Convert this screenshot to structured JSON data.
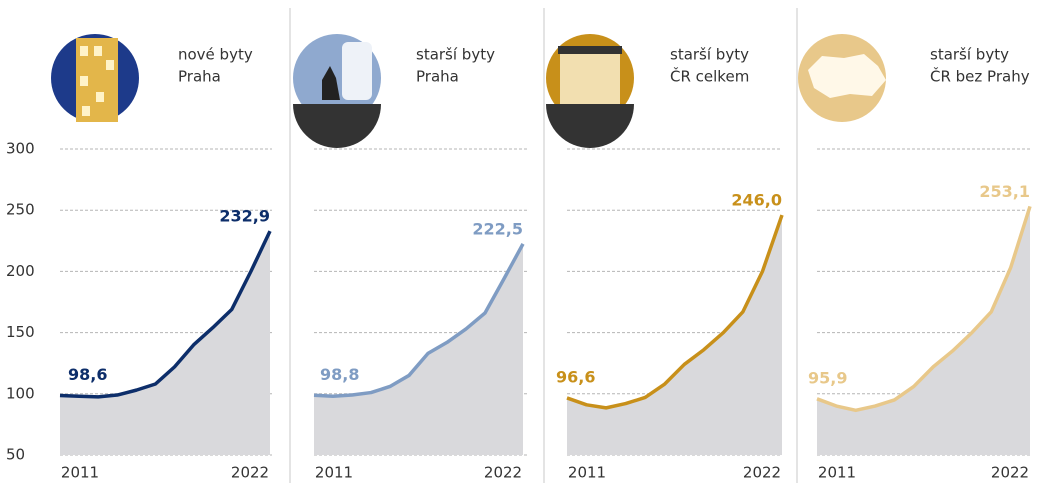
{
  "chart_data": [
    {
      "type": "line",
      "title": [
        "nové byty",
        "Praha"
      ],
      "color": "#0d2e6a",
      "categories": [
        "2011",
        null,
        null,
        null,
        null,
        null,
        null,
        null,
        null,
        null,
        null,
        "2022"
      ],
      "values": [
        98.6,
        98,
        97.5,
        99,
        103,
        108,
        122,
        140,
        154,
        169,
        200,
        232.9
      ],
      "value_labels": [
        "98,6",
        null,
        null,
        null,
        null,
        null,
        null,
        null,
        null,
        null,
        null,
        "232,9"
      ],
      "ylim": [
        50,
        300
      ],
      "yticks": [
        50,
        100,
        150,
        200,
        250,
        300
      ],
      "grid": true
    },
    {
      "type": "line",
      "title": [
        "starší byty",
        "Praha"
      ],
      "color": "#7f9cc3",
      "categories": [
        "2011",
        null,
        null,
        null,
        null,
        null,
        null,
        null,
        null,
        null,
        null,
        "2022"
      ],
      "values": [
        98.8,
        98,
        99,
        101,
        106,
        115,
        133,
        142,
        153,
        166,
        194,
        222.5
      ],
      "value_labels": [
        "98,8",
        null,
        null,
        null,
        null,
        null,
        null,
        null,
        null,
        null,
        null,
        "222,5"
      ]
    },
    {
      "type": "line",
      "title": [
        "starší byty",
        "ČR celkem"
      ],
      "color": "#c8901a",
      "categories": [
        "2011",
        null,
        null,
        null,
        null,
        null,
        null,
        null,
        null,
        null,
        null,
        "2022"
      ],
      "values": [
        96.6,
        91,
        88.5,
        92,
        97,
        108,
        124,
        136,
        150,
        167,
        200,
        246.0
      ],
      "value_labels": [
        "96,6",
        null,
        null,
        null,
        null,
        null,
        null,
        null,
        null,
        null,
        null,
        "246,0"
      ]
    },
    {
      "type": "line",
      "title": [
        "starší byty",
        "ČR bez Prahy"
      ],
      "color": "#e8c88a",
      "categories": [
        "2011",
        null,
        null,
        null,
        null,
        null,
        null,
        null,
        null,
        null,
        null,
        "2022"
      ],
      "values": [
        95.9,
        90,
        86.5,
        90,
        95,
        106,
        122,
        135,
        150,
        167,
        203,
        253.1
      ],
      "value_labels": [
        "95,9",
        null,
        null,
        null,
        null,
        null,
        null,
        null,
        null,
        null,
        null,
        "253,1"
      ]
    }
  ]
}
